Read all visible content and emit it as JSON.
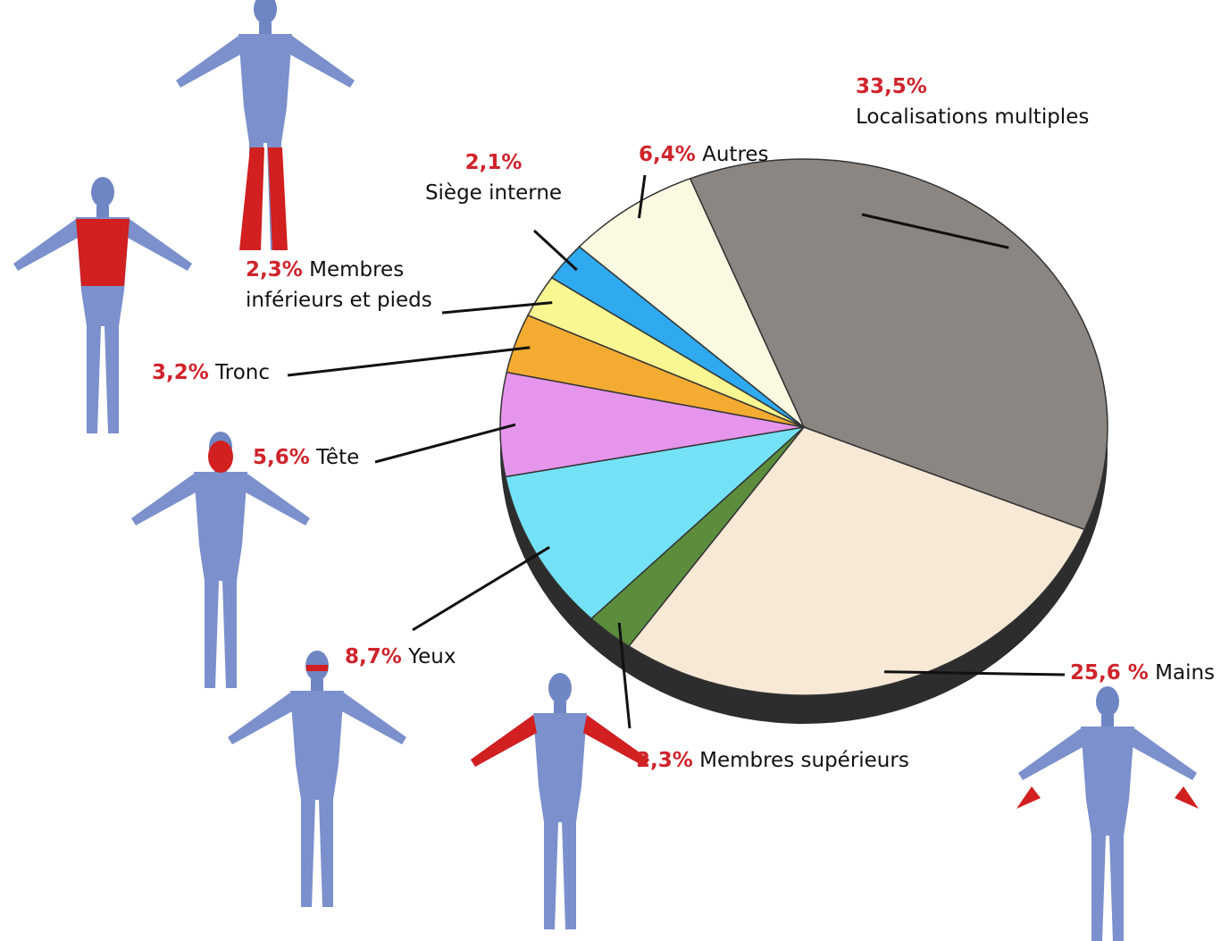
{
  "chart_data": {
    "type": "pie",
    "categories": [
      "Localisations multiples",
      "Mains",
      "Membres supérieurs",
      "Yeux",
      "Tête",
      "Tronc",
      "Membres inférieurs et pieds",
      "Siège interne",
      "Autres"
    ],
    "values": [
      33.5,
      25.6,
      2.3,
      8.7,
      5.6,
      3.2,
      2.3,
      2.1,
      6.4
    ],
    "value_labels": [
      "33,5%",
      "25,6 %",
      "2,3%",
      "8,7%",
      "5,6%",
      "3,2%",
      "2,3%",
      "2,1%",
      "6,4%"
    ],
    "colors": [
      "#8b8682",
      "#f8e8d6",
      "#5b8d3d",
      "#74e2f6",
      "#e595ec",
      "#f4ab32",
      "#f9f792",
      "#2fa9ef",
      "#fbf9e2"
    ]
  }
}
